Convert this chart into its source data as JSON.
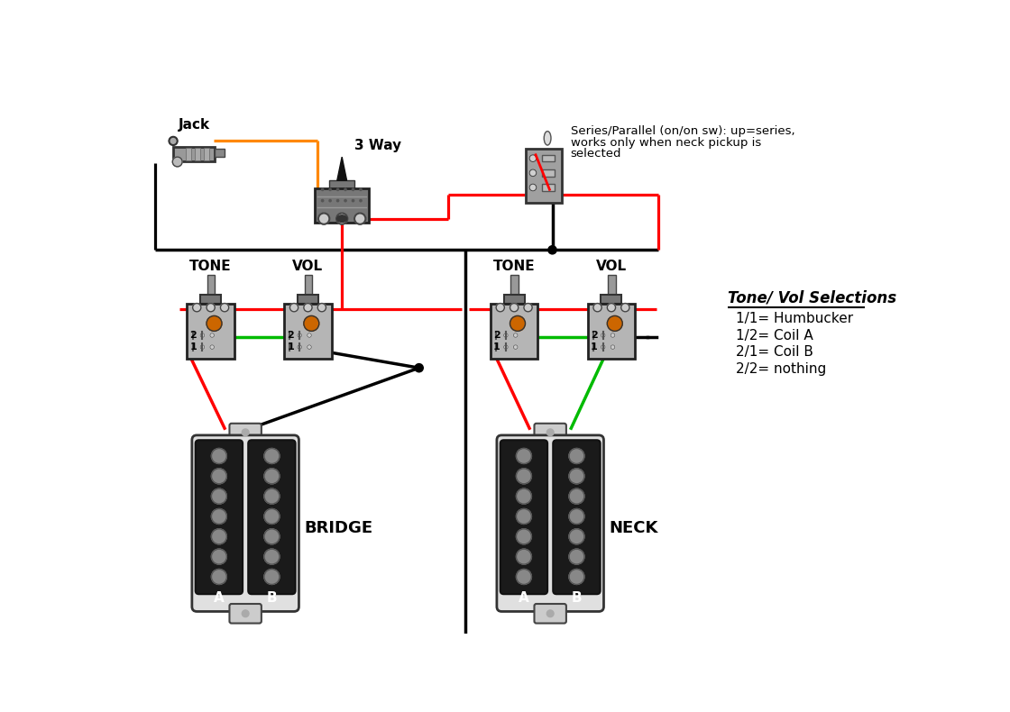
{
  "bg_color": "#ffffff",
  "series_parallel_line1": "Series/Parallel (on/on sw): up=series,",
  "series_parallel_line2": "works only when neck pickup is",
  "series_parallel_line3": "selected",
  "tone_vol_title": "Tone/ Vol Selections",
  "selections": [
    "1/1= Humbucker",
    "1/2= Coil A",
    "2/1= Coil B",
    "2/2= nothing"
  ],
  "label_jack": "Jack",
  "label_3way": "3 Way",
  "label_bridge_tone": "TONE",
  "label_bridge_vol": "VOL",
  "label_neck_tone": "TONE",
  "label_neck_vol": "VOL",
  "label_bridge": "BRIDGE",
  "label_neck": "NECK",
  "red": "#ff0000",
  "black": "#000000",
  "orange": "#ff8800",
  "green": "#00bb00",
  "pot_body": "#b0b0b0",
  "pot_dark": "#555555",
  "pot_cap": "#cc6600",
  "switch_gray": "#888888",
  "lug_gray": "#c0c0c0",
  "pickup_frame": "#d8d8d8",
  "pickup_coil": "#1a1a1a",
  "pickup_pole": "#888888",
  "jack_gray": "#999999",
  "white": "#ffffff",
  "dark": "#222222"
}
